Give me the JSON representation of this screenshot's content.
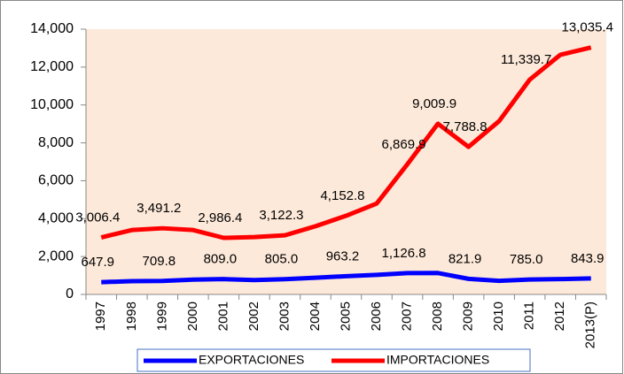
{
  "chart_data": {
    "type": "line",
    "categories": [
      "1997",
      "1998",
      "1999",
      "2000",
      "2001",
      "2002",
      "2003",
      "2004",
      "2005",
      "2006",
      "2007",
      "2008",
      "2009",
      "2010",
      "2011",
      "2012",
      "2013(P)"
    ],
    "series": [
      {
        "name": "EXPORTACIONES",
        "color": "#0000ff",
        "values": [
          647.9,
          700,
          709.8,
          780,
          809.0,
          760,
          805.0,
          880,
          963.2,
          1030,
          1126.8,
          1130,
          821.9,
          720,
          785.0,
          810,
          843.9
        ],
        "value_labels": [
          "647.9",
          null,
          "709.8",
          null,
          "809.0",
          null,
          "805.0",
          null,
          "963.2",
          null,
          "1,126.8",
          null,
          "821.9",
          null,
          "785.0",
          null,
          "843.9"
        ]
      },
      {
        "name": "IMPORTACIONES",
        "color": "#ff0000",
        "values": [
          3006.4,
          3400,
          3491.2,
          3400,
          2986.4,
          3030,
          3122.3,
          3600,
          4152.8,
          4800,
          6869.9,
          9009.9,
          7788.8,
          9150,
          11339.7,
          12650,
          13035.4
        ],
        "value_labels": [
          "3,006.4",
          null,
          "3,491.2",
          null,
          "2,986.4",
          null,
          "3,122.3",
          null,
          "4,152.8",
          null,
          "6,869.9",
          "9,009.9",
          "7,788.8",
          null,
          "11,339.7",
          null,
          "13,035.4"
        ]
      }
    ],
    "ylim": [
      0,
      14000
    ],
    "yticks": [
      0,
      {
        "value": 2000,
        "label": "2,000"
      },
      {
        "value": 4000,
        "label": "4,000"
      },
      {
        "value": 6000,
        "label": "6,000"
      },
      {
        "value": 8000,
        "label": "8,000"
      },
      {
        "value": 10000,
        "label": "10,000"
      },
      {
        "value": 12000,
        "label": "12,000"
      },
      {
        "value": 14000,
        "label": "14,000"
      }
    ],
    "plot_background": "#fde9d9",
    "legend": "bottom"
  }
}
